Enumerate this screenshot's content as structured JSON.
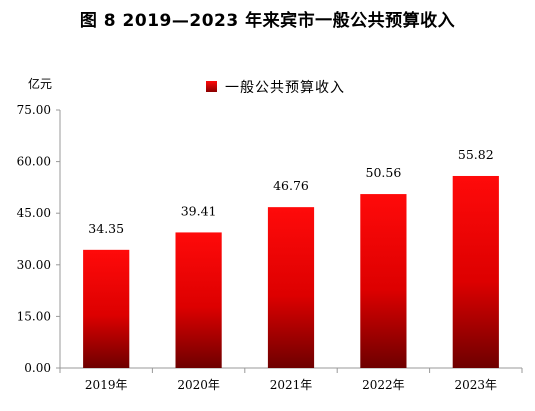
{
  "figure": {
    "title": "图 8    2019—2023 年来宾市一般公共预算收入"
  },
  "chart_data": {
    "type": "bar",
    "title": "图 8    2019—2023 年来宾市一般公共预算收入",
    "ylabel": "亿元",
    "xlabel": "",
    "categories": [
      "2019年",
      "2020年",
      "2021年",
      "2022年",
      "2023年"
    ],
    "series": [
      {
        "name": "一般公共预算收入",
        "values": [
          34.35,
          39.41,
          46.76,
          50.56,
          55.82
        ],
        "value_labels": [
          "34.35",
          "39.41",
          "46.76",
          "50.56",
          "55.82"
        ]
      }
    ],
    "ylim": [
      0,
      75
    ],
    "yticks": [
      "0.00",
      "15.00",
      "30.00",
      "45.00",
      "60.00",
      "75.00"
    ],
    "grid": false,
    "legend": "top-center",
    "colors": {
      "bar_top": "#ff0a0a",
      "bar_mid": "#dd0000",
      "bar_bottom": "#6e0000",
      "axis": "#999999"
    }
  }
}
